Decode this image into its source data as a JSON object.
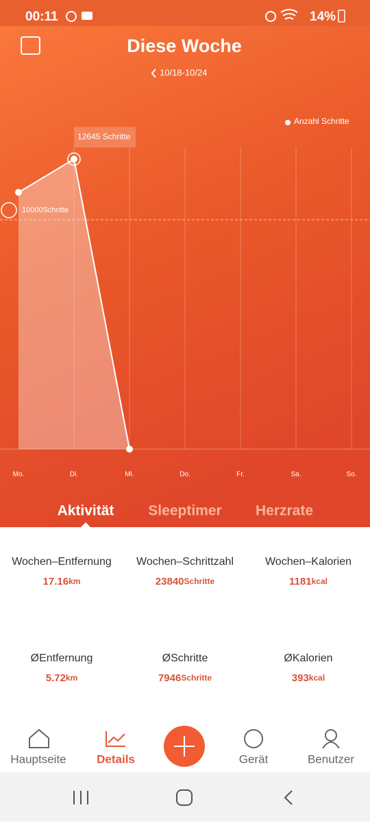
{
  "status": {
    "time": "00:11",
    "battery": "14%"
  },
  "header": {
    "title": "Diese Woche",
    "range": "10/18-10/24"
  },
  "chart_data": {
    "type": "line",
    "categories": [
      "Mo.",
      "Di.",
      "Mi.",
      "Do.",
      "Fr.",
      "Sa.",
      "So."
    ],
    "series": [
      {
        "name": "Anzahl Schritte",
        "color": "#ffffff",
        "values": [
          11195,
          12645,
          0,
          null,
          null,
          null,
          null
        ],
        "value_labels": [
          null,
          "12645 Schritte",
          null,
          null,
          null,
          null,
          null
        ]
      }
    ],
    "ylim": [
      0,
      13164
    ],
    "goal": {
      "value": 10000,
      "label": "10000Schritte"
    }
  },
  "tabs": [
    "Aktivität",
    "Sleeptimer",
    "Herzrate"
  ],
  "stats": [
    {
      "label": "Wochen–Entfernung",
      "value": 17.16,
      "unit": "km"
    },
    {
      "label": "Wochen–Schrittzahl",
      "value": 23840,
      "unit": "Schritte"
    },
    {
      "label": "Wochen–Kalorien",
      "value": 1181,
      "unit": "kcal"
    },
    {
      "label": "ØEntfernung",
      "value": 5.72,
      "unit": "km"
    },
    {
      "label": "ØSchritte",
      "value": 7946,
      "unit": "Schritte"
    },
    {
      "label": "ØKalorien",
      "value": 393,
      "unit": "kcal"
    }
  ],
  "nav": [
    "Hauptseite",
    "Details",
    "Gerät",
    "Benutzer"
  ]
}
